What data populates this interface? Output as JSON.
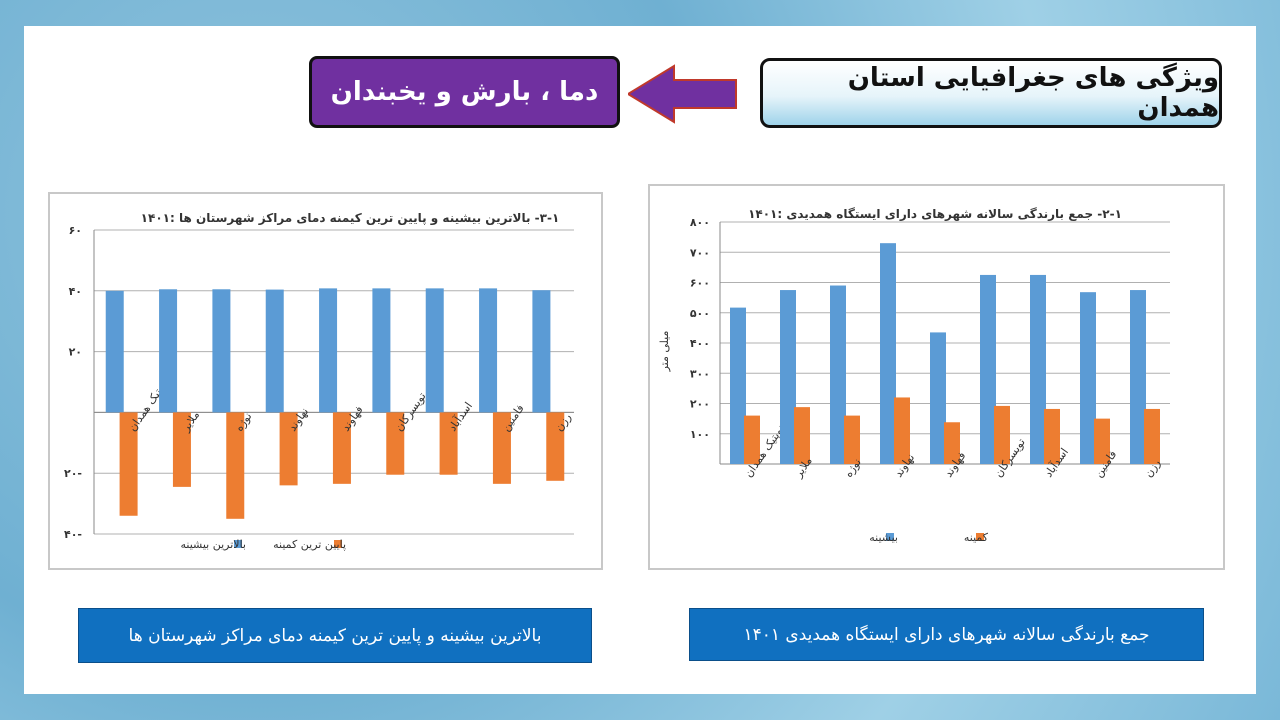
{
  "slide": {
    "title": "ویژگی های جغرافیایی استان همدان",
    "subtitle": "دما ، بارش و یخبندان",
    "caption_left": "بالاترین بیشینه و پایین ترین کیمنه دمای مراکز شهرستان ها",
    "caption_right": "جمع بارندگی سالانه شهرهای دارای ایستگاه همدیدی ۱۴۰۱"
  },
  "colors": {
    "title_bg": "#7030a0",
    "caption_bg": "#1070c0",
    "series_max": "#5b9bd5",
    "series_min": "#ed7d31"
  },
  "chart_data": [
    {
      "type": "bar",
      "title": "۳-۱- بالاترین بیشینه و پایین ترین کیمنه دمای مراکز شهرستان ها :۱۴۰۱",
      "categories": [
        "سینوپتیک همدان",
        "ملایر",
        "نوژه",
        "نهاوند",
        "فهاوند",
        "تویسرکان",
        "اسدآباد",
        "فامنین",
        "رزن"
      ],
      "series": [
        {
          "name": "بالاترین بیشینه",
          "values": [
            40,
            40.5,
            40.5,
            40.4,
            40.8,
            40.8,
            40.8,
            40.8,
            40.2
          ]
        },
        {
          "name": "پایین ترین کمینه",
          "values": [
            -34,
            -24.5,
            -35,
            -24,
            -23.5,
            -20.5,
            -20.5,
            -23.5,
            -22.5
          ]
        }
      ],
      "yticks": [
        "۶۰",
        "۴۰",
        "۲۰",
        "",
        "۲۰-",
        "۴۰-"
      ],
      "ylim": [
        -40,
        60
      ],
      "legend": "bottom"
    },
    {
      "type": "bar",
      "title": "۲-۱- جمع بارندگی سالانه شهرهای دارای ایستگاه همدیدی :۱۴۰۱",
      "categories": [
        "سینوپتیک همدان",
        "ملایر",
        "نوژه",
        "نهاوند",
        "فهاوند",
        "تویسرکان",
        "اسدآباد",
        "فامنین",
        "رزن"
      ],
      "series": [
        {
          "name": "بیشینه",
          "values": [
            517,
            575,
            590,
            730,
            435,
            625,
            625,
            568,
            575
          ]
        },
        {
          "name": "کمینه",
          "values": [
            160,
            188,
            160,
            220,
            138,
            192,
            182,
            150,
            182
          ]
        }
      ],
      "ylabel": "میلی متر",
      "yticks": [
        "۱۰۰",
        "۲۰۰",
        "۳۰۰",
        "۴۰۰",
        "۵۰۰",
        "۶۰۰",
        "۷۰۰",
        "۸۰۰"
      ],
      "ylim": [
        0,
        800
      ],
      "legend": "bottom"
    }
  ]
}
